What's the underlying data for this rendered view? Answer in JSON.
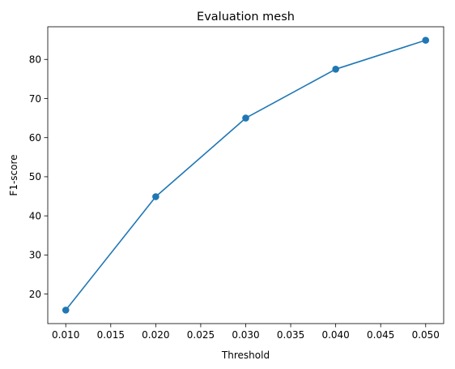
{
  "chart_data": {
    "type": "line",
    "title": "Evaluation mesh",
    "xlabel": "Threshold",
    "ylabel": "F1-score",
    "x": [
      0.01,
      0.02,
      0.03,
      0.04,
      0.05
    ],
    "series": [
      {
        "values": [
          15.9,
          44.9,
          65.0,
          77.5,
          84.9
        ],
        "color": "#1f77b4",
        "marker": "circle"
      }
    ],
    "xlim": [
      0.008,
      0.052
    ],
    "ylim": [
      12.45,
      88.35
    ],
    "xticks": [
      0.01,
      0.015,
      0.02,
      0.025,
      0.03,
      0.035,
      0.04,
      0.045,
      0.05
    ],
    "xtick_labels": [
      "0.010",
      "0.015",
      "0.020",
      "0.025",
      "0.030",
      "0.035",
      "0.040",
      "0.045",
      "0.050"
    ],
    "yticks": [
      20,
      30,
      40,
      50,
      60,
      70,
      80
    ],
    "ytick_labels": [
      "20",
      "30",
      "40",
      "50",
      "60",
      "70",
      "80"
    ],
    "grid": false,
    "legend": "none"
  }
}
